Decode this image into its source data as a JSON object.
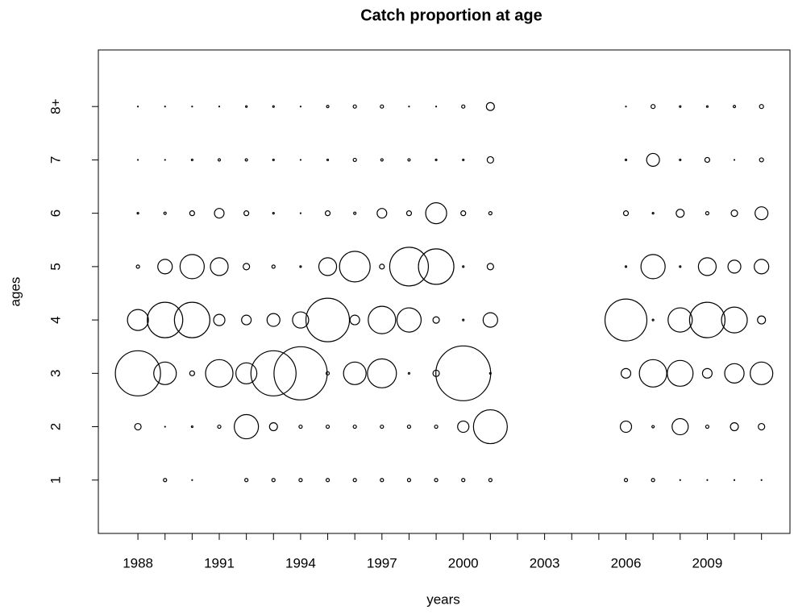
{
  "chart_data": {
    "type": "bubble",
    "title": "Catch proportion at age",
    "xlabel": "years",
    "ylabel": "ages",
    "x": [
      1988,
      1989,
      1990,
      1991,
      1992,
      1993,
      1994,
      1995,
      1996,
      1997,
      1998,
      1999,
      2000,
      2001,
      2006,
      2007,
      2008,
      2009,
      2010,
      2011
    ],
    "xlim": [
      1986.54,
      2012.05
    ],
    "xticks": [
      1988,
      1991,
      1994,
      1997,
      2000,
      2003,
      2006,
      2009
    ],
    "xminorticks": [
      1988,
      1989,
      1990,
      1991,
      1992,
      1993,
      1994,
      1995,
      1996,
      1997,
      1998,
      1999,
      2000,
      2001,
      2002,
      2003,
      2004,
      2005,
      2006,
      2007,
      2008,
      2009,
      2010,
      2011
    ],
    "ylim": [
      0,
      9.06
    ],
    "yticks": [
      1,
      2,
      3,
      4,
      5,
      6,
      7,
      {
        "value": 8,
        "label": "8+"
      }
    ],
    "color": "#000000",
    "series": [
      {
        "y": 1,
        "values": [
          0,
          0.0033,
          0.0002,
          0,
          0.0033,
          0.0033,
          0.0033,
          0.0033,
          0.0033,
          0.0033,
          0.0033,
          0.0033,
          0.0033,
          0.0033,
          0.0033,
          0.0033,
          0.0002,
          0.0002,
          0.0002,
          0.0002
        ]
      },
      {
        "y": 2,
        "values": [
          0.013,
          0.0002,
          0.0008,
          0.0033,
          0.184,
          0.02,
          0.0033,
          0.0033,
          0.0033,
          0.0033,
          0.0033,
          0.0033,
          0.04,
          0.36,
          0.04,
          0.0018,
          0.082,
          0.0033,
          0.02,
          0.013
        ]
      },
      {
        "y": 3,
        "values": [
          0.64,
          0.16,
          0.0073,
          0.236,
          0.138,
          0.64,
          0.889,
          0.0033,
          0.16,
          0.264,
          0.0008,
          0.013,
          0.944,
          0.0008,
          0.029,
          0.236,
          0.209,
          0.029,
          0.118,
          0.16
        ]
      },
      {
        "y": 4,
        "values": [
          0.138,
          0.395,
          0.395,
          0.04,
          0.029,
          0.052,
          0.082,
          0.595,
          0.029,
          0.236,
          0.184,
          0.013,
          0.0008,
          0.066,
          0.552,
          0.0008,
          0.184,
          0.395,
          0.209,
          0.02
        ]
      },
      {
        "y": 5,
        "values": [
          0.0033,
          0.066,
          0.184,
          0.099,
          0.013,
          0.0033,
          0.0008,
          0.099,
          0.295,
          0.0073,
          0.47,
          0.395,
          0.0008,
          0.013,
          0.0008,
          0.184,
          0.0008,
          0.099,
          0.052,
          0.066
        ]
      },
      {
        "y": 6,
        "values": [
          0.0008,
          0.0018,
          0.0073,
          0.029,
          0.0073,
          0.0008,
          0.0002,
          0.0073,
          0.0018,
          0.029,
          0.0073,
          0.138,
          0.0073,
          0.0033,
          0.0073,
          0.0008,
          0.02,
          0.0033,
          0.013,
          0.052
        ]
      },
      {
        "y": 7,
        "values": [
          0.0002,
          0.0002,
          0.0008,
          0.0018,
          0.0018,
          0.0008,
          0.0002,
          0.0008,
          0.0033,
          0.0018,
          0.0018,
          0.0008,
          0.0008,
          0.013,
          0.0008,
          0.052,
          0.0008,
          0.0073,
          0.0002,
          0.0051
        ]
      },
      {
        "y": 8,
        "values": [
          0.0002,
          0.0002,
          0.0002,
          0.0002,
          0.0008,
          0.0008,
          0.0002,
          0.0018,
          0.0033,
          0.0033,
          0.0002,
          0.0002,
          0.0033,
          0.02,
          0.0002,
          0.0051,
          0.0008,
          0.0008,
          0.0018,
          0.0051
        ]
      }
    ]
  }
}
